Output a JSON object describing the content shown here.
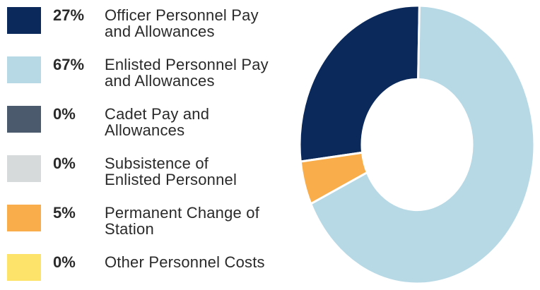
{
  "chart_data": {
    "type": "donut",
    "categories": [
      "Officer Personnel Pay and Allowances",
      "Enlisted Personnel Pay and Allowances",
      "Cadet Pay and Allowances",
      "Subsistence of Enlisted Personnel",
      "Permanent Change of Station",
      "Other Personnel Costs"
    ],
    "values": [
      27,
      67,
      0,
      0,
      5,
      0
    ],
    "value_labels": [
      "27%",
      "67%",
      "0%",
      "0%",
      "5%",
      "0%"
    ],
    "colors": [
      "#0b2a5b",
      "#b7d9e6",
      "#4c5a6e",
      "#d7dadb",
      "#f9ae4b",
      "#fde36a"
    ]
  }
}
